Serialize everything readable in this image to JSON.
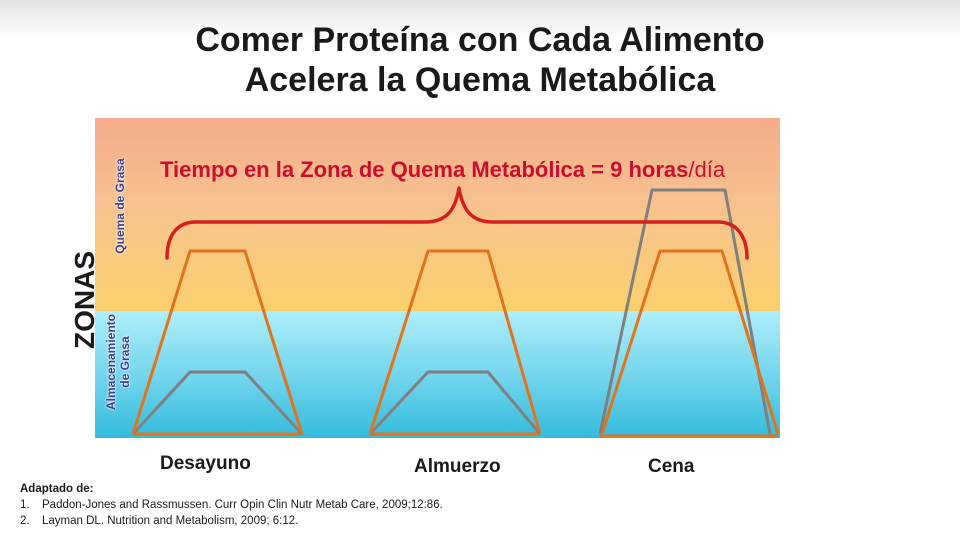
{
  "title": {
    "line1": "Comer Proteína con Cada Alimento",
    "line2": "Acelera la Quema Metabólica"
  },
  "zones": {
    "axis_label": "ZONAS",
    "burn_label": "Quema de Grasa",
    "storage_label_line1": "Almacenamiento",
    "storage_label_line2": "de Grasa"
  },
  "headline": {
    "bold_part": "Tiempo en la Zona de Quema Metabólica = 9 horas",
    "regular_part": "/día"
  },
  "meals": {
    "breakfast": "Desayuno",
    "lunch": "Almuerzo",
    "dinner": "Cena"
  },
  "references": {
    "heading": "Adaptado de:",
    "items": [
      {
        "num": "1.",
        "text": "Paddon-Jones and Rassmussen. Curr Opin Clin Nutr Metab Care, 2009;12:86."
      },
      {
        "num": "2.",
        "text": "Layman DL. Nutrition and Metabolism, 2009; 6:12."
      }
    ]
  },
  "colors": {
    "protein_curve": "#e2731d",
    "baseline_curve": "#7f7f7f",
    "brace": "#d41f1f",
    "headline": "#c8102e"
  }
}
